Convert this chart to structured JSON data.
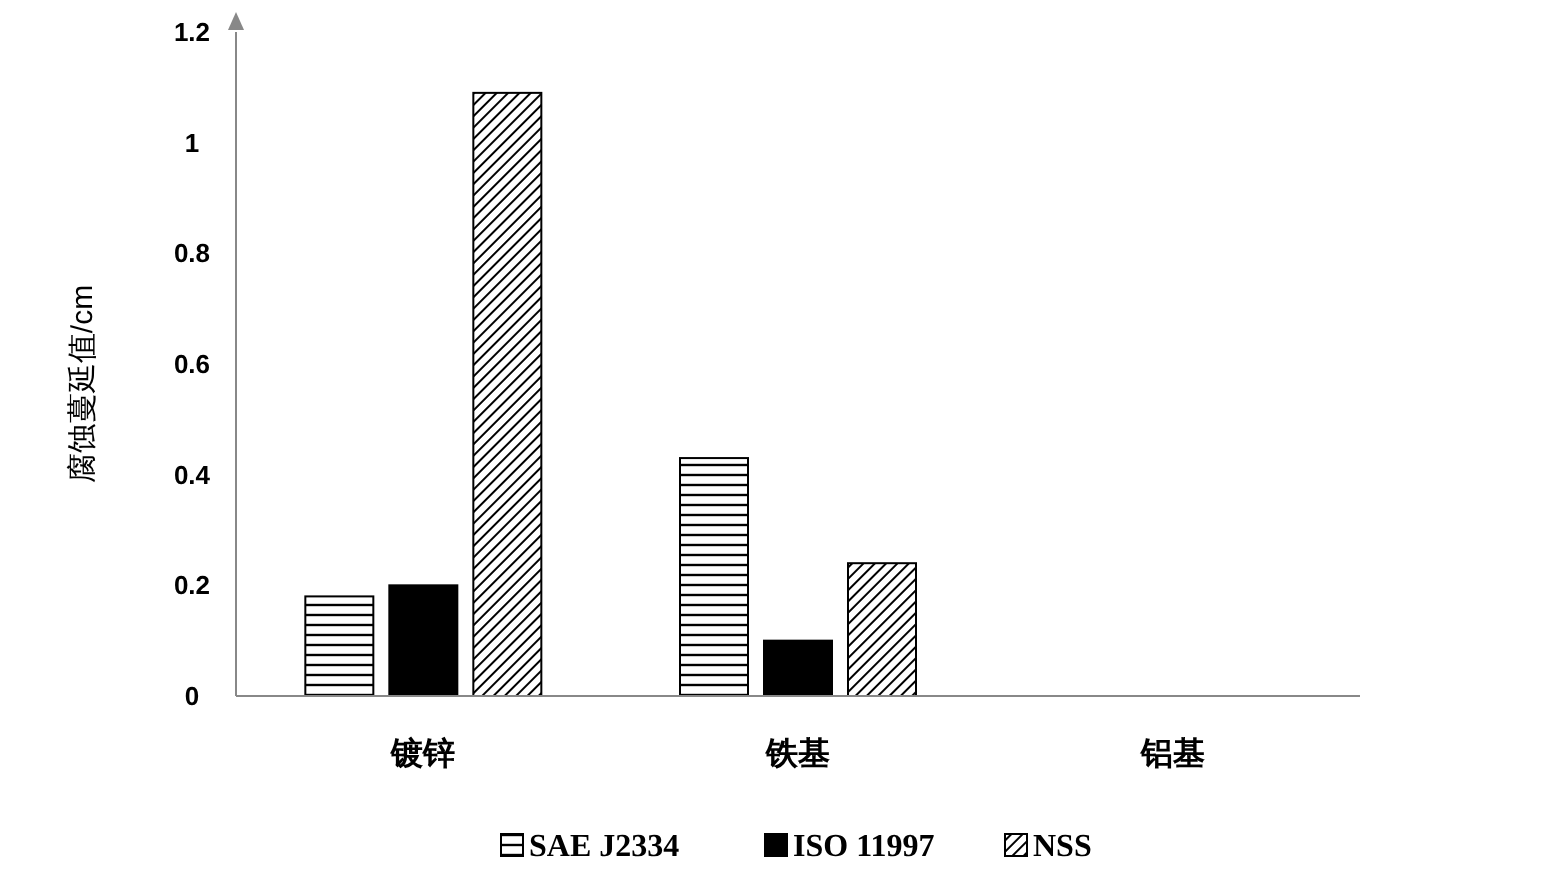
{
  "chart_data": {
    "type": "bar",
    "ylabel": "腐蚀蔓延值/cm",
    "categories": [
      "镀锌",
      "铁基",
      "铝基"
    ],
    "series": [
      {
        "name": "SAE J2334",
        "color": "#000000",
        "values": [
          0.18,
          0.43,
          0
        ]
      },
      {
        "name": "ISO 11997",
        "color": "#000000",
        "values": [
          0.2,
          0.1,
          0
        ]
      },
      {
        "name": "NSS",
        "color": "#000000",
        "values": [
          1.09,
          0.24,
          0
        ]
      }
    ],
    "ylim": [
      0,
      1.2
    ],
    "yticks": [
      0,
      0.2,
      0.4,
      0.6,
      0.8,
      1,
      1.2
    ],
    "grid": false,
    "legend": "bottom"
  }
}
